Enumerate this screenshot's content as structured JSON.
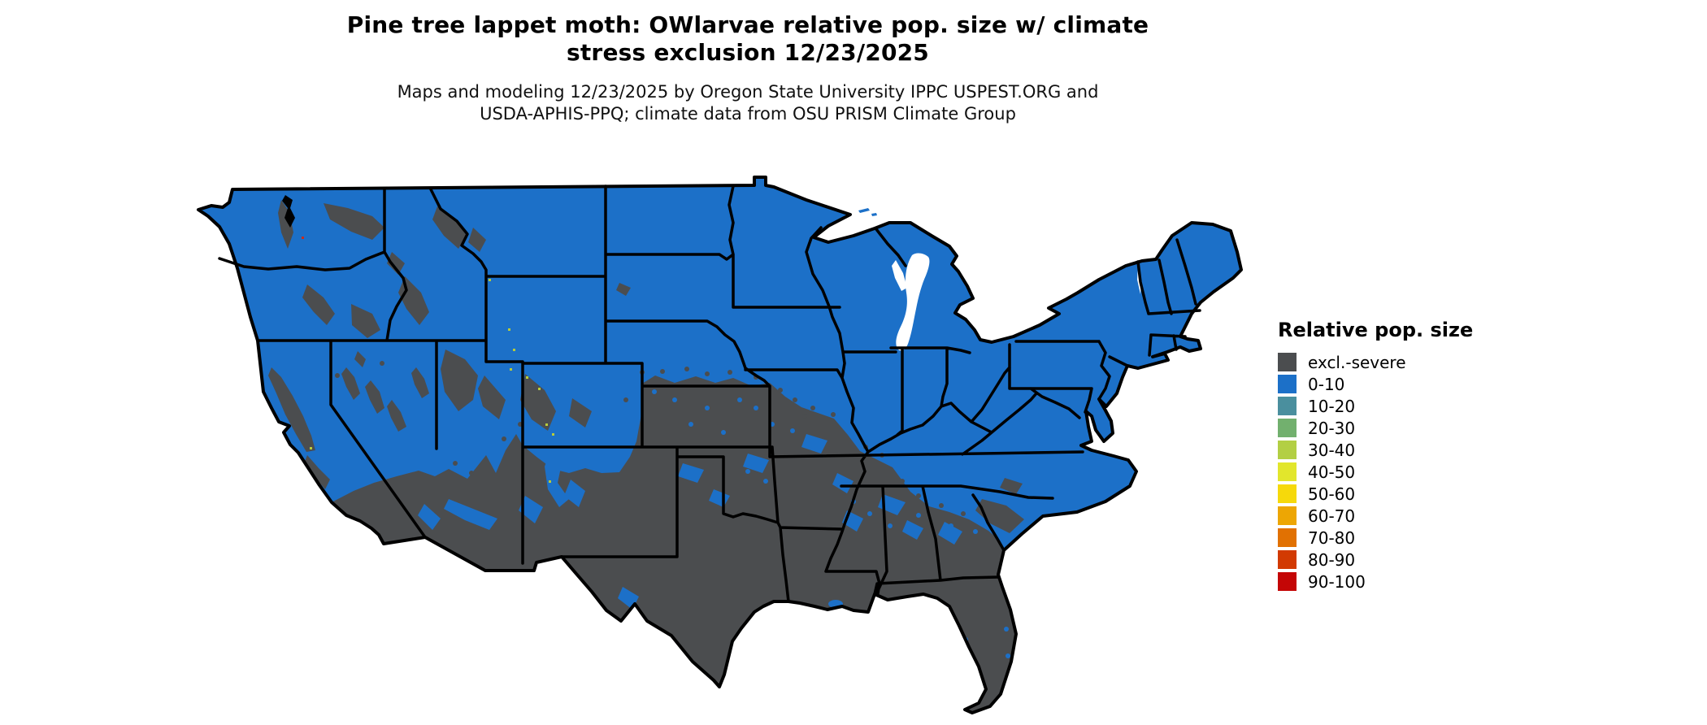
{
  "header": {
    "title_line1": "Pine tree lappet moth: OWlarvae relative pop. size w/ climate",
    "title_line2": "stress exclusion 12/23/2025",
    "subtitle_line1": "Maps and modeling 12/23/2025 by Oregon State University IPPC USPEST.ORG and",
    "subtitle_line2": "USDA-APHIS-PPQ; climate data from OSU PRISM Climate Group"
  },
  "legend": {
    "title": "Relative pop. size",
    "items": [
      {
        "label": "excl.-severe",
        "color": "#4b4d4f"
      },
      {
        "label": "0-10",
        "color": "#1c70c8"
      },
      {
        "label": "10-20",
        "color": "#4a8f9e"
      },
      {
        "label": "20-30",
        "color": "#72b06e"
      },
      {
        "label": "30-40",
        "color": "#b3cf44"
      },
      {
        "label": "40-50",
        "color": "#e2e62c"
      },
      {
        "label": "50-60",
        "color": "#f6d90b"
      },
      {
        "label": "60-70",
        "color": "#eda604"
      },
      {
        "label": "70-80",
        "color": "#e17102"
      },
      {
        "label": "80-90",
        "color": "#d23a02"
      },
      {
        "label": "90-100",
        "color": "#c40606"
      }
    ]
  },
  "map": {
    "description": "Continental US raster map: blue = relative pop. size 0-10, dark gray = excluded by severe climate stress (southern US and western mountain areas), black state borders",
    "colors": {
      "land": "#1c70c8",
      "excluded": "#4b4d4f",
      "border": "#000000",
      "water": "#ffffff",
      "speck_yellow": "#b8cc3a",
      "speck_red": "#cc2a1a"
    }
  }
}
